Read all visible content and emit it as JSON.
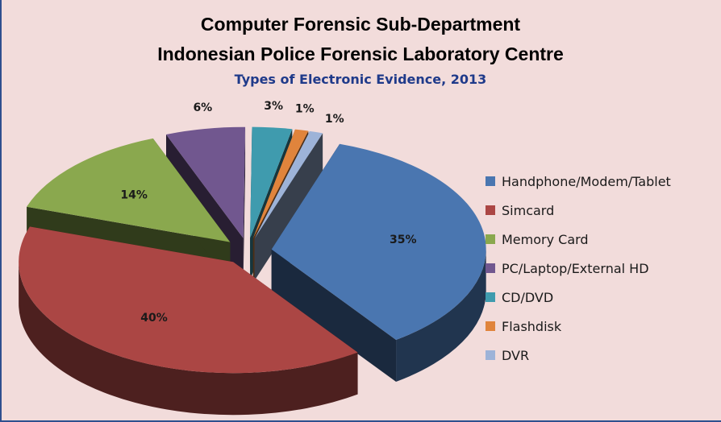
{
  "header": {
    "title_line1": "Computer Forensic Sub-Department",
    "title_line2": "Indonesian Police Forensic Laboratory Centre",
    "subtitle": "Types of Electronic Evidence, 2013"
  },
  "chart_data": {
    "type": "pie",
    "title": "Computer Forensic Sub-Department Indonesian Police Forensic Laboratory Centre",
    "subtitle": "Types of Electronic Evidence, 2013",
    "legend_position": "right",
    "categories": [
      "Handphone/Modem/Tablet",
      "Simcard",
      "Memory Card",
      "PC/Laptop/External HD",
      "CD/DVD",
      "Flashdisk",
      "DVR"
    ],
    "values": [
      35,
      40,
      14,
      6,
      3,
      1,
      1
    ],
    "labels": [
      "35%",
      "40%",
      "14%",
      "6%",
      "3%",
      "1%",
      "1%"
    ],
    "colors": [
      "#4a76b0",
      "#ab4644",
      "#8aa84e",
      "#71578f",
      "#3f9bae",
      "#e0843c",
      "#9db3d8"
    ]
  }
}
